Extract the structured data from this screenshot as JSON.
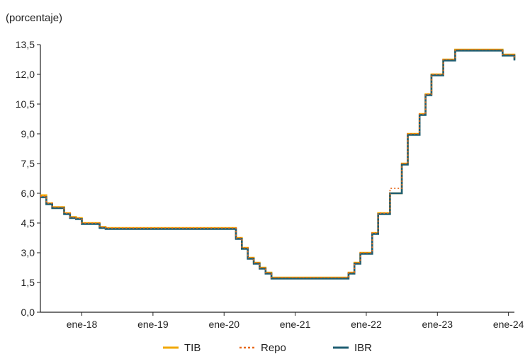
{
  "chart_data": {
    "type": "line",
    "unit_label": "(porcentaje)",
    "title": "",
    "xlabel": "",
    "ylabel": "",
    "x_range": [
      "2017-06",
      "2024-02"
    ],
    "ylim": [
      0,
      13.5
    ],
    "y_ticks": [
      "0,0",
      "1,5",
      "3,0",
      "4,5",
      "6,0",
      "7,5",
      "9,0",
      "10,5",
      "12,0",
      "13,5"
    ],
    "y_tick_values": [
      0,
      1.5,
      3,
      4.5,
      6,
      7.5,
      9,
      10.5,
      12,
      13.5
    ],
    "x_ticks": [
      "ene-18",
      "ene-19",
      "ene-20",
      "ene-21",
      "ene-22",
      "ene-23",
      "ene-24"
    ],
    "x_tick_values": [
      "2018-01",
      "2019-01",
      "2020-01",
      "2021-01",
      "2022-01",
      "2023-01",
      "2024-01"
    ],
    "grid": false,
    "legend_position": "bottom",
    "x": [
      "2017-06",
      "2017-07",
      "2017-08",
      "2017-09",
      "2017-10",
      "2017-11",
      "2017-12",
      "2018-01",
      "2018-02",
      "2018-03",
      "2018-04",
      "2018-05",
      "2018-06",
      "2018-07",
      "2018-08",
      "2018-09",
      "2018-10",
      "2018-11",
      "2018-12",
      "2019-01",
      "2019-02",
      "2019-03",
      "2019-04",
      "2019-05",
      "2019-06",
      "2019-07",
      "2019-08",
      "2019-09",
      "2019-10",
      "2019-11",
      "2019-12",
      "2020-01",
      "2020-02",
      "2020-03",
      "2020-04",
      "2020-05",
      "2020-06",
      "2020-07",
      "2020-08",
      "2020-09",
      "2020-10",
      "2020-11",
      "2020-12",
      "2021-01",
      "2021-02",
      "2021-03",
      "2021-04",
      "2021-05",
      "2021-06",
      "2021-07",
      "2021-08",
      "2021-09",
      "2021-10",
      "2021-11",
      "2021-12",
      "2022-01",
      "2022-02",
      "2022-03",
      "2022-04",
      "2022-05",
      "2022-06",
      "2022-07",
      "2022-08",
      "2022-09",
      "2022-10",
      "2022-11",
      "2022-12",
      "2023-01",
      "2023-02",
      "2023-03",
      "2023-04",
      "2023-05",
      "2023-06",
      "2023-07",
      "2023-08",
      "2023-09",
      "2023-10",
      "2023-11",
      "2023-12",
      "2024-01",
      "2024-02"
    ],
    "series": [
      {
        "name": "TIB",
        "color": "#f2a900",
        "style": "solid",
        "values": [
          5.9,
          5.5,
          5.3,
          5.3,
          5.0,
          4.8,
          4.75,
          4.5,
          4.5,
          4.5,
          4.3,
          4.25,
          4.25,
          4.25,
          4.25,
          4.25,
          4.25,
          4.25,
          4.25,
          4.25,
          4.25,
          4.25,
          4.25,
          4.25,
          4.25,
          4.25,
          4.25,
          4.25,
          4.25,
          4.25,
          4.25,
          4.25,
          4.25,
          3.75,
          3.25,
          2.75,
          2.5,
          2.25,
          2.0,
          1.75,
          1.75,
          1.75,
          1.75,
          1.75,
          1.75,
          1.75,
          1.75,
          1.75,
          1.75,
          1.75,
          1.75,
          1.75,
          2.0,
          2.5,
          3.0,
          3.0,
          4.0,
          5.0,
          5.0,
          6.0,
          6.0,
          7.5,
          9.0,
          9.0,
          10.0,
          11.0,
          12.0,
          12.0,
          12.75,
          12.75,
          13.25,
          13.25,
          13.25,
          13.25,
          13.25,
          13.25,
          13.25,
          13.25,
          13.0,
          13.0,
          12.75
        ]
      },
      {
        "name": "Repo",
        "color": "#e86a1c",
        "style": "dotted",
        "values": [
          5.85,
          5.5,
          5.3,
          5.3,
          5.0,
          4.8,
          4.75,
          4.5,
          4.5,
          4.5,
          4.3,
          4.25,
          4.25,
          4.25,
          4.25,
          4.25,
          4.25,
          4.25,
          4.25,
          4.25,
          4.25,
          4.25,
          4.25,
          4.25,
          4.25,
          4.25,
          4.25,
          4.25,
          4.25,
          4.25,
          4.25,
          4.25,
          4.25,
          3.75,
          3.25,
          2.75,
          2.5,
          2.25,
          2.0,
          1.75,
          1.75,
          1.75,
          1.75,
          1.75,
          1.75,
          1.75,
          1.75,
          1.75,
          1.75,
          1.75,
          1.75,
          1.75,
          2.0,
          2.5,
          3.0,
          3.0,
          4.0,
          5.0,
          5.0,
          6.25,
          6.25,
          7.5,
          9.0,
          9.0,
          10.0,
          11.0,
          12.0,
          12.0,
          12.75,
          12.75,
          13.25,
          13.25,
          13.25,
          13.25,
          13.25,
          13.25,
          13.25,
          13.25,
          13.0,
          13.0,
          12.75
        ]
      },
      {
        "name": "IBR",
        "color": "#1f5f73",
        "style": "solid",
        "values": [
          5.8,
          5.45,
          5.25,
          5.25,
          4.95,
          4.75,
          4.7,
          4.45,
          4.45,
          4.45,
          4.25,
          4.2,
          4.2,
          4.2,
          4.2,
          4.2,
          4.2,
          4.2,
          4.2,
          4.2,
          4.2,
          4.2,
          4.2,
          4.2,
          4.2,
          4.2,
          4.2,
          4.2,
          4.2,
          4.2,
          4.2,
          4.2,
          4.2,
          3.7,
          3.2,
          2.7,
          2.45,
          2.2,
          1.95,
          1.7,
          1.7,
          1.7,
          1.7,
          1.7,
          1.7,
          1.7,
          1.7,
          1.7,
          1.7,
          1.7,
          1.7,
          1.7,
          1.95,
          2.45,
          2.95,
          2.95,
          3.95,
          4.95,
          4.95,
          6.0,
          6.0,
          7.45,
          8.95,
          8.95,
          9.95,
          10.95,
          11.95,
          11.95,
          12.7,
          12.7,
          13.2,
          13.2,
          13.2,
          13.2,
          13.2,
          13.2,
          13.2,
          13.2,
          12.95,
          12.95,
          12.7
        ]
      }
    ]
  }
}
